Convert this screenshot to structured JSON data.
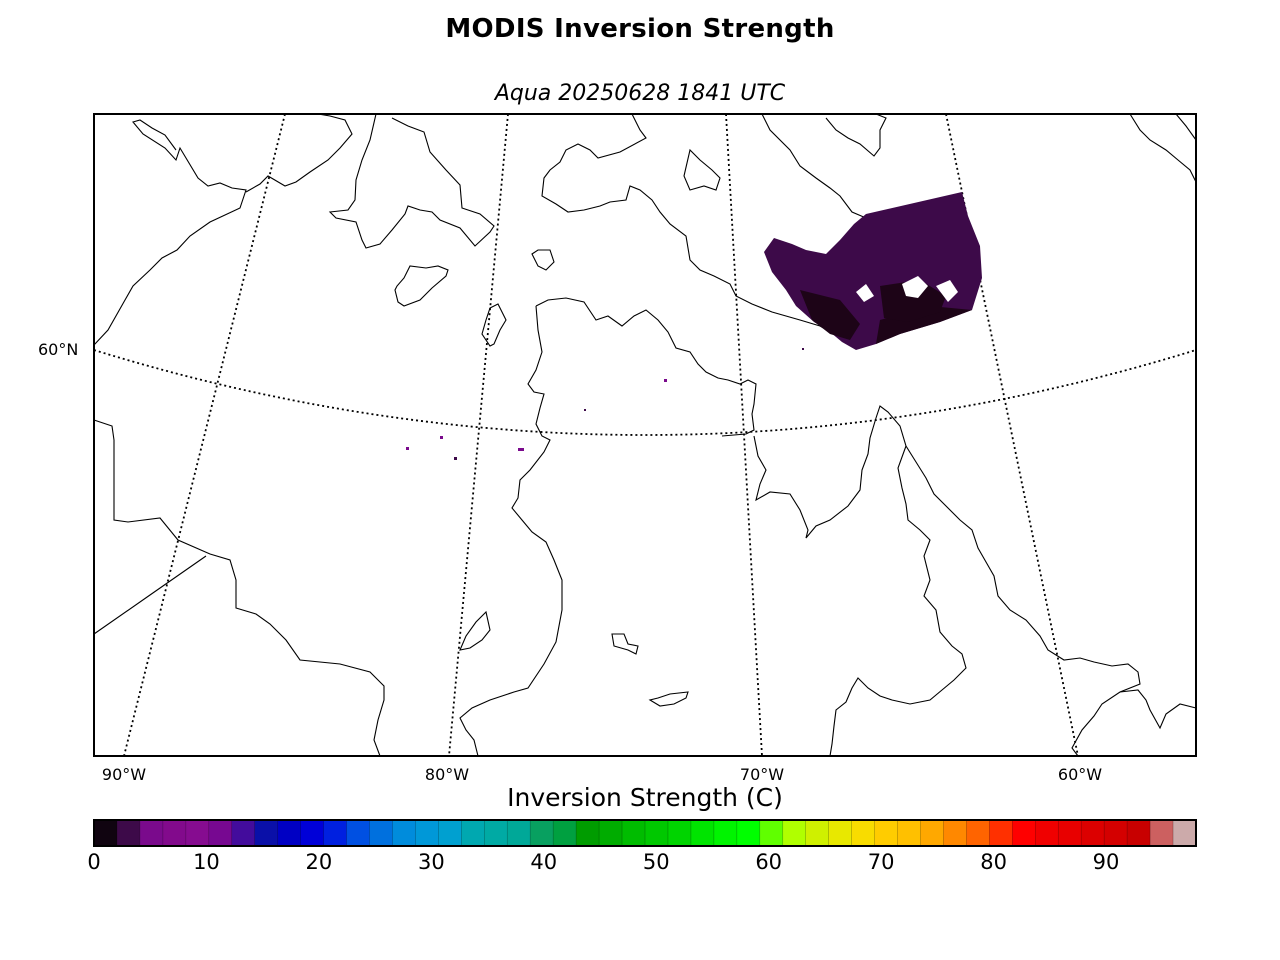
{
  "title": "MODIS Inversion Strength",
  "subtitle": "Aqua 20250628 1841 UTC",
  "map": {
    "projection": "lambert-conformal",
    "parallel_labels": [
      "60°N"
    ],
    "meridian_labels": [
      "90°W",
      "80°W",
      "70°W",
      "60°W"
    ],
    "features": [
      "coastlines",
      "country-borders",
      "lat-lon-grid"
    ],
    "data_swath": {
      "region": "Ungava Bay / northern Quebec",
      "dominant_value_range_c": [
        0,
        4
      ],
      "colors": [
        "#3d0a49",
        "#1d0417"
      ]
    }
  },
  "colorbar": {
    "label": "Inversion Strength (C)",
    "min": 0,
    "max": 98,
    "tick_values": [
      0,
      10,
      20,
      30,
      40,
      50,
      60,
      70,
      80,
      90
    ],
    "tick_labels": [
      "0",
      "10",
      "20",
      "30",
      "40",
      "50",
      "60",
      "70",
      "80",
      "90"
    ],
    "colors": [
      "#100410",
      "#3d0a49",
      "#7a0a8c",
      "#820a8c",
      "#860c90",
      "#770891",
      "#430c9c",
      "#0a10a8",
      "#0000c4",
      "#0000d8",
      "#0020e0",
      "#0050e2",
      "#0070de",
      "#008cdc",
      "#0098d8",
      "#00a0d0",
      "#00a8b0",
      "#00aaa4",
      "#00a898",
      "#08a060",
      "#00a040",
      "#009c00",
      "#00ac00",
      "#00bc00",
      "#00c800",
      "#00d400",
      "#00e400",
      "#00f400",
      "#00ff00",
      "#60ff00",
      "#b0ff00",
      "#cff000",
      "#e8e800",
      "#f8dc00",
      "#ffcc00",
      "#ffc000",
      "#ffa800",
      "#ff8800",
      "#ff6400",
      "#ff3000",
      "#ff0000",
      "#f00000",
      "#e80000",
      "#dc0000",
      "#d40000",
      "#c80000",
      "#cc6060",
      "#ccaaaa"
    ]
  }
}
